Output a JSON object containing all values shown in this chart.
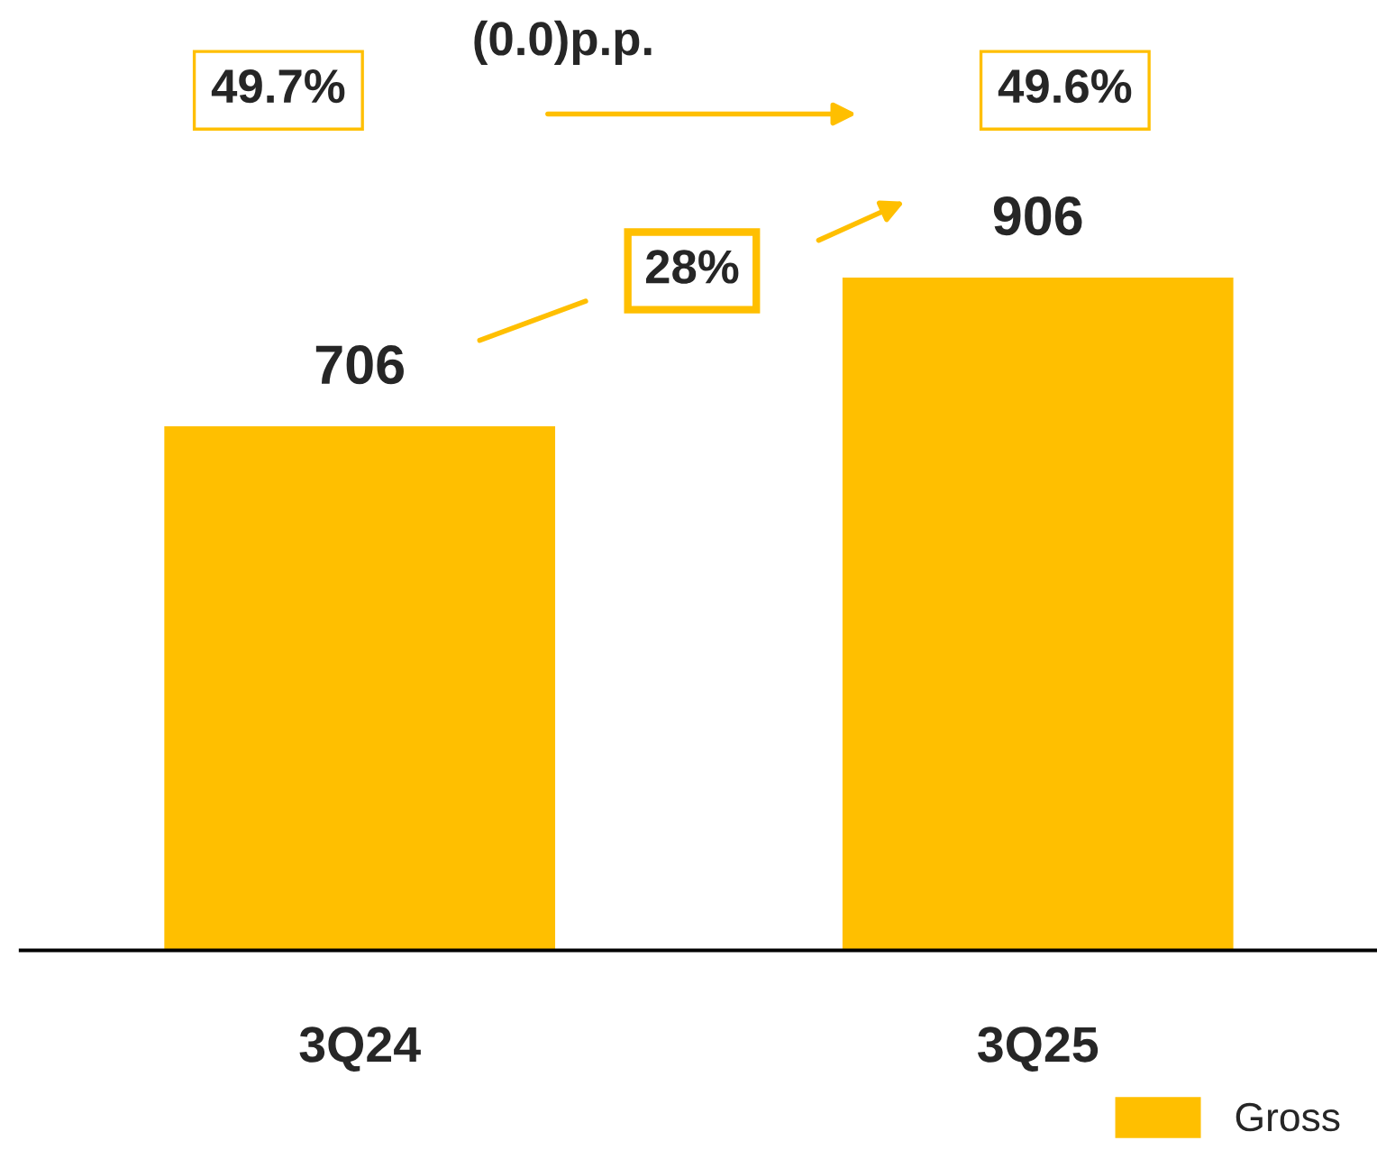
{
  "chart_data": {
    "type": "bar",
    "categories": [
      "3Q24",
      "3Q25"
    ],
    "series": [
      {
        "name": "Gross",
        "color": "#ffbf00",
        "values": [
          706,
          906
        ]
      }
    ],
    "data_labels": true,
    "legend": "bottom right",
    "grid": false,
    "annotations": [
      "49.7%",
      "(0.0)p.p.",
      "49.6%",
      "28%"
    ]
  }
}
